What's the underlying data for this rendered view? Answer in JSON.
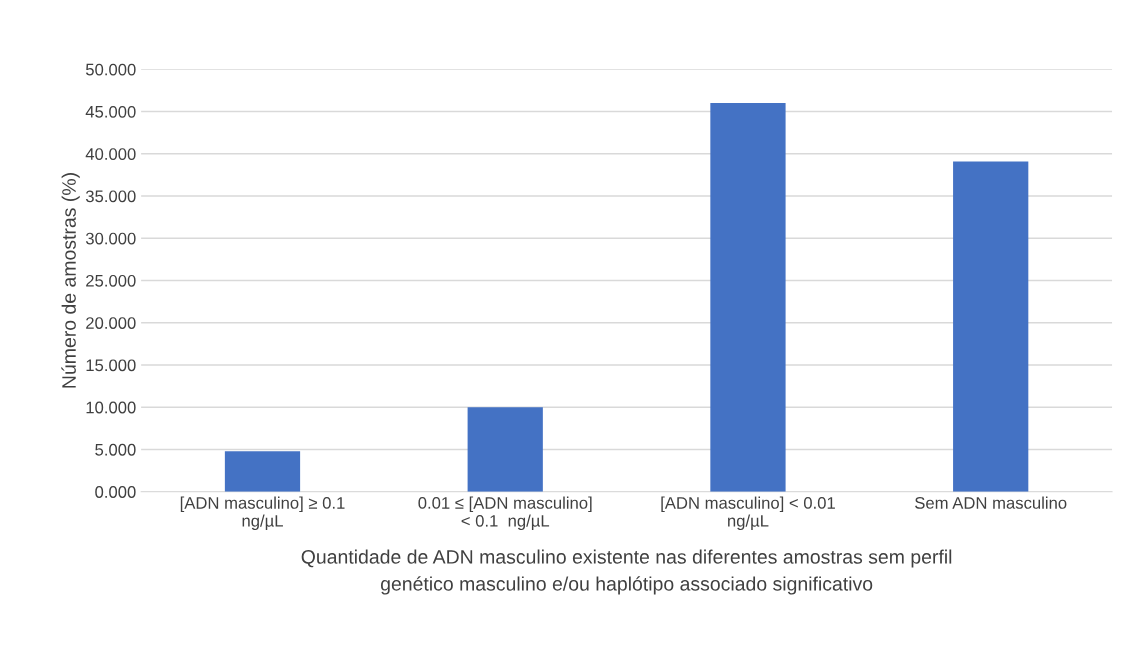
{
  "chart_data": {
    "type": "bar",
    "xlabel": "Quantidade de ADN masculino existente nas diferentes amostras sem perfil\ngenético masculino e/ou haplótipo associado significativo",
    "ylabel": "Número de amostras (%)",
    "categories": [
      "[ADN masculino] ≥ 0.1\nng/µL",
      "0.01 ≤ [ADN masculino]\n< 0.1  ng/µL",
      "[ADN masculino] < 0.01\nng/µL",
      "Sem ADN masculino"
    ],
    "values": [
      4.8,
      10.0,
      46.0,
      39.1
    ],
    "color": "#4472c4",
    "ylim": [
      0,
      50
    ],
    "yticks": [
      {
        "value": 0,
        "label": "0.000"
      },
      {
        "value": 5,
        "label": "5.000"
      },
      {
        "value": 10,
        "label": "10.000"
      },
      {
        "value": 15,
        "label": "15.000"
      },
      {
        "value": 20,
        "label": "20.000"
      },
      {
        "value": 25,
        "label": "25.000"
      },
      {
        "value": 30,
        "label": "30.000"
      },
      {
        "value": 35,
        "label": "35.000"
      },
      {
        "value": 40,
        "label": "40.000"
      },
      {
        "value": 45,
        "label": "45.000"
      },
      {
        "value": 50,
        "label": "50.000"
      }
    ],
    "grid": "y"
  }
}
